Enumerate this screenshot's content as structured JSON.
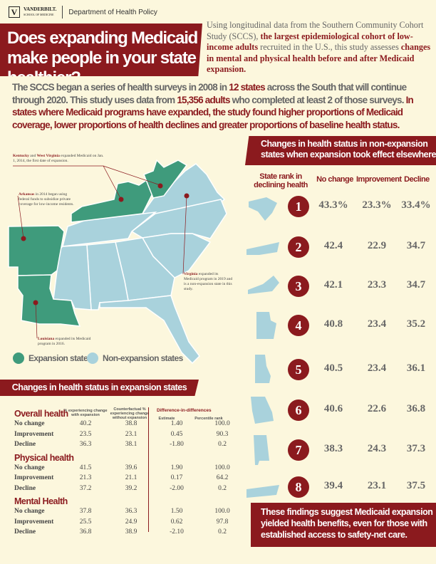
{
  "header": {
    "logo_name": "VANDERBILT.",
    "logo_sub": "SCHOOL OF MEDICINE",
    "department": "Department of Health Policy"
  },
  "title": "Does expanding Medicaid make people in your state healthier?",
  "intro": {
    "p1": "Using longitudinal data from the Southern Community Cohort Study (SCCS), ",
    "h1": "the largest epidemiological cohort of low-income adults",
    "p2": " recruited in the U.S., this study assesses ",
    "h2": "changes in mental and physical health before and after Medicaid expansion."
  },
  "paragraph": {
    "p1": "The SCCS began a series of health surveys in 2008 in ",
    "h1": "12 states",
    "p2": " across the South that will continue through 2020. This study uses data from ",
    "h2": "15,356 adults",
    "p3": " who completed at least 2 of those surveys. ",
    "h3": "In states where Medicaid programs have expanded, the study found higher proportions of Medicaid coverage, lower proportions of health declines and greater proportions of baseline health status."
  },
  "map": {
    "notes": {
      "kywv": {
        "b1": "Kentucky",
        "t1": " and ",
        "b2": "West Virginia",
        "t2": " expanded Medicaid on Jan. 1, 2014, the first date of expansion."
      },
      "ar": {
        "b": "Arkansas",
        "t": " in 2014 began using federal funds to subsidize private coverage for low-income residents."
      },
      "va": {
        "b": "Virginia",
        "t": " expanded its Medicaid program in 2019 and is a non-expansion state in this study."
      },
      "la": {
        "b": "Louisiana",
        "t": " expanded its Medicaid program in 2016."
      }
    },
    "legend": {
      "expansion": "Expansion states",
      "non_expansion": "Non-expansion states"
    },
    "colors": {
      "expansion": "#3f9b7c",
      "non_expansion": "#a9d2dc"
    }
  },
  "non_expansion": {
    "title": "Changes in health status in non-expansion states when expansion took effect elsewhere",
    "columns": [
      "State rank in declining health",
      "No change",
      "Improvement",
      "Decline"
    ],
    "rows": [
      {
        "rank": "1",
        "no_change": "43.3%",
        "improvement": "23.3%",
        "decline": "33.4%"
      },
      {
        "rank": "2",
        "no_change": "42.4",
        "improvement": "22.9",
        "decline": "34.7"
      },
      {
        "rank": "3",
        "no_change": "42.1",
        "improvement": "23.3",
        "decline": "34.7"
      },
      {
        "rank": "4",
        "no_change": "40.8",
        "improvement": "23.4",
        "decline": "35.2"
      },
      {
        "rank": "5",
        "no_change": "40.5",
        "improvement": "23.4",
        "decline": "36.1"
      },
      {
        "rank": "6",
        "no_change": "40.6",
        "improvement": "22.6",
        "decline": "36.8"
      },
      {
        "rank": "7",
        "no_change": "38.3",
        "improvement": "24.3",
        "decline": "37.3"
      },
      {
        "rank": "8",
        "no_change": "39.4",
        "improvement": "23.1",
        "decline": "37.5"
      }
    ]
  },
  "conclusion": "These findings suggest Medicaid expansion yielded health benefits, even for those with established access to safety-net care.",
  "expansion_table": {
    "title": "Changes in health status in expansion states",
    "col1": "% experiencing change with expansion",
    "col2": "Counterfactual % experiencing change without expansion",
    "did": "Difference-in-differences",
    "col3": "Estimate",
    "col4": "Percentile rank",
    "sections": [
      {
        "name": "Overall health",
        "rows": [
          [
            "No change",
            "40.2",
            "38.8",
            "1.40",
            "100.0"
          ],
          [
            "Improvement",
            "23.5",
            "23.1",
            "0.45",
            "90.3"
          ],
          [
            "Decline",
            "36.3",
            "38.1",
            "-1.80",
            "0.2"
          ]
        ]
      },
      {
        "name": "Physical health",
        "rows": [
          [
            "No change",
            "41.5",
            "39.6",
            "1.90",
            "100.0"
          ],
          [
            "Improvement",
            "21.3",
            "21.1",
            "0.17",
            "64.2"
          ],
          [
            "Decline",
            "37.2",
            "39.2",
            "-2.00",
            "0.2"
          ]
        ]
      },
      {
        "name": "Mental Health",
        "rows": [
          [
            "No change",
            "37.8",
            "36.3",
            "1.50",
            "100.0"
          ],
          [
            "Improvement",
            "25.5",
            "24.9",
            "0.62",
            "97.8"
          ],
          [
            "Decline",
            "36.8",
            "38.9",
            "-2.10",
            "0.2"
          ]
        ]
      }
    ]
  }
}
